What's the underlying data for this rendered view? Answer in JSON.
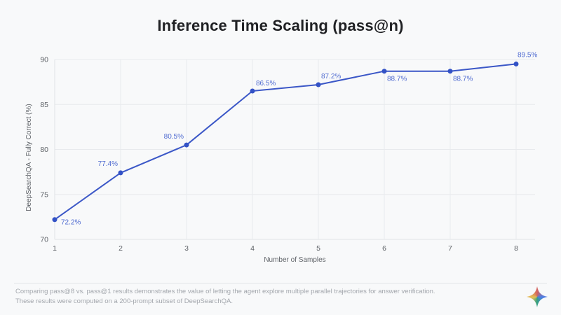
{
  "page": {
    "title": "Inference Time Scaling (pass@n)",
    "footer": {
      "line1": "Comparing pass@8 vs. pass@1 results demonstrates the value of letting the agent explore multiple parallel trajectories for answer verification.",
      "line2": "These results were computed on a 200-prompt subset of DeepSearchQA."
    },
    "logo_icon": "gemini-sparkle"
  },
  "colors": {
    "background": "#f8f9fa",
    "grid": "#e8eaed",
    "axis_line": "#dfe2e6",
    "axis_text": "#5f6368",
    "line": "#3b57c7",
    "marker": "#3352c6",
    "point_label": "#4e6ad0",
    "title_text": "#202124",
    "footer_text": "#a3a7ad",
    "divider": "#e3e5e8"
  },
  "chart_data": {
    "type": "line",
    "title": "Inference Time Scaling (pass@n)",
    "x": [
      1,
      2,
      3,
      4,
      5,
      6,
      7,
      8
    ],
    "values": [
      72.2,
      77.4,
      80.5,
      86.5,
      87.2,
      88.7,
      88.7,
      89.5
    ],
    "point_labels": [
      "72.2%",
      "77.4%",
      "80.5%",
      "86.5%",
      "87.2%",
      "88.7%",
      "88.7%",
      "89.5%"
    ],
    "xlabel": "Number of Samples",
    "ylabel": "DeepSearchQA - Fully Correct (%)",
    "xlim": [
      1,
      8
    ],
    "ylim": [
      70,
      90
    ],
    "xticks": [
      1,
      2,
      3,
      4,
      5,
      6,
      7,
      8
    ],
    "yticks": [
      70,
      75,
      80,
      85,
      90
    ],
    "grid": true,
    "legend": "none",
    "label_offsets": [
      [
        9,
        7,
        "start"
      ],
      [
        -4,
        -10,
        "end"
      ],
      [
        -4,
        -9,
        "end"
      ],
      [
        5,
        -8,
        "start"
      ],
      [
        4,
        -9,
        "start"
      ],
      [
        4,
        14,
        "start"
      ],
      [
        4,
        14,
        "start"
      ],
      [
        2,
        -10,
        "start"
      ]
    ]
  }
}
